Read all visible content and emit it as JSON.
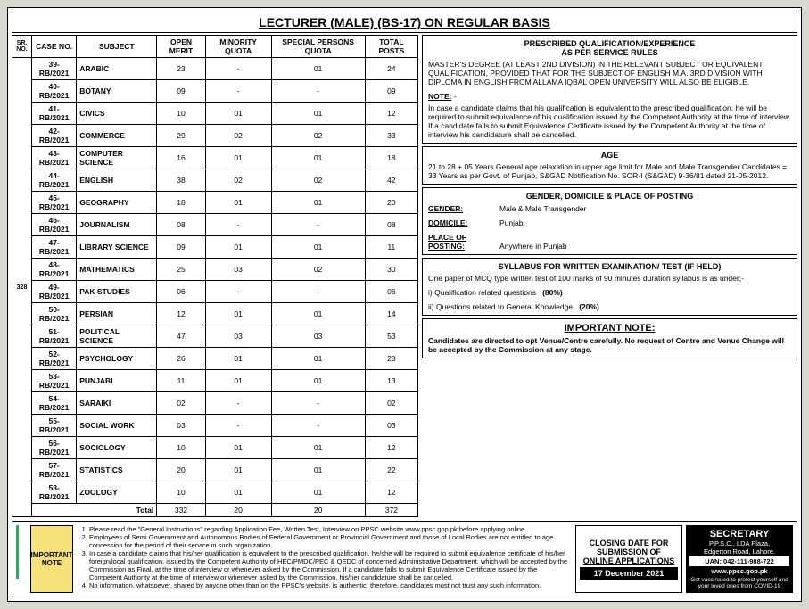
{
  "title": "LECTURER (MALE) (BS-17) ON REGULAR BASIS",
  "srno": "328",
  "headers": {
    "sr": "SR. NO.",
    "case": "CASE NO.",
    "subject": "SUBJECT",
    "open": "OPEN MERIT",
    "min": "MINORITY QUOTA",
    "spec": "SPECIAL PERSONS QUOTA",
    "total": "TOTAL POSTS"
  },
  "rows": [
    {
      "c": "39-RB/2021",
      "s": "ARABIC",
      "o": "23",
      "m": "-",
      "p": "01",
      "t": "24"
    },
    {
      "c": "40-RB/2021",
      "s": "BOTANY",
      "o": "09",
      "m": "-",
      "p": "-",
      "t": "09"
    },
    {
      "c": "41-RB/2021",
      "s": "CIVICS",
      "o": "10",
      "m": "01",
      "p": "01",
      "t": "12"
    },
    {
      "c": "42-RB/2021",
      "s": "COMMERCE",
      "o": "29",
      "m": "02",
      "p": "02",
      "t": "33"
    },
    {
      "c": "43-RB/2021",
      "s": "COMPUTER SCIENCE",
      "o": "16",
      "m": "01",
      "p": "01",
      "t": "18"
    },
    {
      "c": "44-RB/2021",
      "s": "ENGLISH",
      "o": "38",
      "m": "02",
      "p": "02",
      "t": "42"
    },
    {
      "c": "45-RB/2021",
      "s": "GEOGRAPHY",
      "o": "18",
      "m": "01",
      "p": "01",
      "t": "20"
    },
    {
      "c": "46-RB/2021",
      "s": "JOURNALISM",
      "o": "08",
      "m": "-",
      "p": "-",
      "t": "08"
    },
    {
      "c": "47-RB/2021",
      "s": "LIBRARY SCIENCE",
      "o": "09",
      "m": "01",
      "p": "01",
      "t": "11"
    },
    {
      "c": "48-RB/2021",
      "s": "MATHEMATICS",
      "o": "25",
      "m": "03",
      "p": "02",
      "t": "30"
    },
    {
      "c": "49-RB/2021",
      "s": "PAK STUDIES",
      "o": "06",
      "m": "-",
      "p": "-",
      "t": "06"
    },
    {
      "c": "50-RB/2021",
      "s": "PERSIAN",
      "o": "12",
      "m": "01",
      "p": "01",
      "t": "14"
    },
    {
      "c": "51-RB/2021",
      "s": "POLITICAL SCIENCE",
      "o": "47",
      "m": "03",
      "p": "03",
      "t": "53"
    },
    {
      "c": "52-RB/2021",
      "s": "PSYCHOLOGY",
      "o": "26",
      "m": "01",
      "p": "01",
      "t": "28"
    },
    {
      "c": "53-RB/2021",
      "s": "PUNJABI",
      "o": "11",
      "m": "01",
      "p": "01",
      "t": "13"
    },
    {
      "c": "54-RB/2021",
      "s": "SARAIKI",
      "o": "02",
      "m": "-",
      "p": "-",
      "t": "02"
    },
    {
      "c": "55-RB/2021",
      "s": "SOCIAL WORK",
      "o": "03",
      "m": "-",
      "p": "-",
      "t": "03"
    },
    {
      "c": "56-RB/2021",
      "s": "SOCIOLOGY",
      "o": "10",
      "m": "01",
      "p": "01",
      "t": "12"
    },
    {
      "c": "57-RB/2021",
      "s": "STATISTICS",
      "o": "20",
      "m": "01",
      "p": "01",
      "t": "22"
    },
    {
      "c": "58-RB/2021",
      "s": "ZOOLOGY",
      "o": "10",
      "m": "01",
      "p": "01",
      "t": "12"
    }
  ],
  "total": {
    "lab": "Total",
    "o": "332",
    "m": "20",
    "p": "20",
    "t": "372"
  },
  "qual": {
    "head1": "PRESCRIBED QUALIFICATION/EXPERIENCE",
    "head2": "AS PER SERVICE RULES",
    "body": "MASTER'S DEGREE (AT LEAST 2ND DIVISION) IN THE RELEVANT SUBJECT OR EQUIVALENT QUALIFICATION, PROVIDED THAT FOR THE SUBJECT OF ENGLISH M.A. 3RD DIVISION WITH DIPLOMA IN ENGLISH FROM ALLAMA IQBAL OPEN UNIVERSITY WILL ALSO BE ELIGIBLE.",
    "noteLab": "NOTE:",
    "note": "In case a candidate claims that his qualification is equivalent to the prescribed qualification, he will be required to submit equivalence of his qualification issued by the Competent Authority at the time of interview. If a candidate fails to submit Equivalence Certificate issued by the Competent Authority at the time of interview his candidature shall be cancelled."
  },
  "age": {
    "head": "AGE",
    "body": "21 to 28 + 05 Years General age relaxation in upper age limit for Male and Male Transgender Candidates = 33 Years as per Govt. of Punjab, S&GAD Notification No. SOR-I (S&GAD) 9-36/81 dated 21-05-2012."
  },
  "gdp": {
    "head": "GENDER, DOMICILE & PLACE OF POSTING",
    "genderLab": "GENDER:",
    "gender": "Male & Male Transgender",
    "domLab": "DOMICILE:",
    "dom": "Punjab.",
    "posLab": "PLACE OF POSTING:",
    "pos": "Anywhere in Punjab"
  },
  "syl": {
    "head": "SYLLABUS FOR WRITTEN EXAMINATION/ TEST (IF HELD)",
    "intro": "One paper of MCQ type written test of 100 marks of 90 minutes duration syllabus is as under;-",
    "i1": "i)   Qualification related questions",
    "p1": "(80%)",
    "i2": "ii)  Questions related to General Knowledge",
    "p2": "(20%)"
  },
  "imp": {
    "head": "IMPORTANT NOTE:",
    "body": "Candidates are directed to opt Venue/Centre carefully. No request of Centre and Venue Change will be accepted by the Commission at any stage."
  },
  "footer": {
    "imp": "IMPORTANT NOTE",
    "l1": "Please read the \"General Instructions\" regarding Application Fee, Written Test, Interview on PPSC website www.ppsc.gop.pk before applying online.",
    "l2": "Employees of Semi Government and Autonomous Bodies of Federal Government or Provincial Government and those of Local Bodies are not entitled to age concession for the period of their service in such organization.",
    "l3": "In case a candidate claims that his/her qualification is equivalent to the prescribed qualification, he/she will be required to submit equivalence certificate of his/her foreign/local qualification, issued by the Competent Authority of HEC/PMDC/PEC & QEDC of concerned Administrative Department, which will be accepted by the Commission as Final, at the time of interview or whenever asked by the Commission. If a candidate fails to submit Equivalence Certificate issued by the Competent Authority at the time of interview or whenever asked by the Commission, his/her candidature shall be cancelled.",
    "l4": "No information, whatsoever, shared by anyone other than on the PPSC's website, is authentic; therefore, candidates must not trust any such information."
  },
  "closing": {
    "l1": "CLOSING DATE FOR",
    "l2": "SUBMISSION OF",
    "l3": "ONLINE APPLICATIONS",
    "date": "17 December 2021"
  },
  "sec": {
    "t": "SECRETARY",
    "a1": "P.P.S.C., LDA Plaza,",
    "a2": "Edgerton Road, Lahore.",
    "uan": "UAN: 042-111-988-722",
    "web": "www.ppsc.gop.pk",
    "cov": "Get vaccinated to protect yourself and your loved ones from COVID-19"
  }
}
